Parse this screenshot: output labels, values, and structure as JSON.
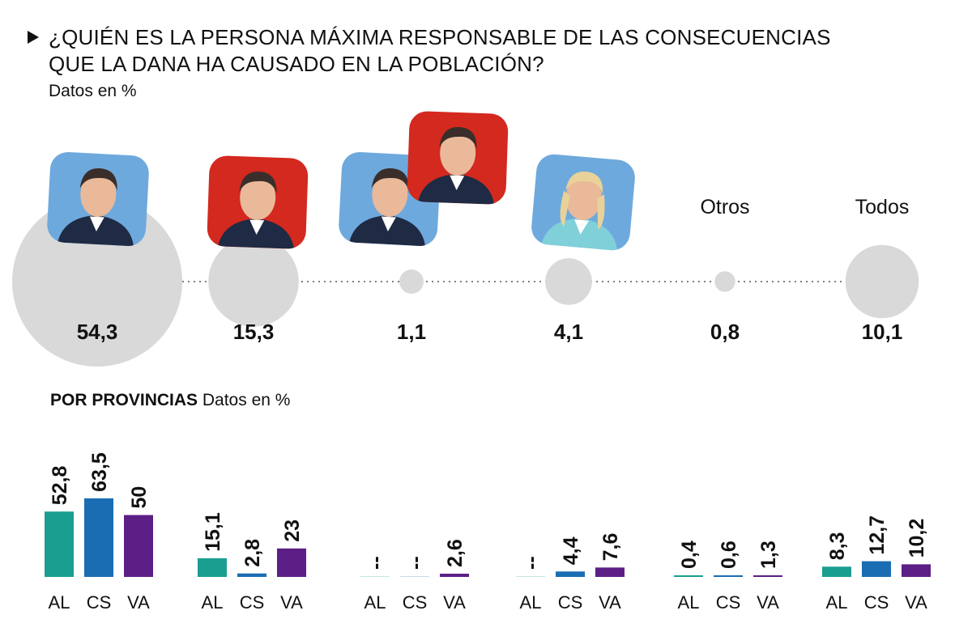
{
  "header": {
    "title_line1": "¿QUIÉN ES LA PERSONA MÁXIMA RESPONSABLE DE LAS CONSECUENCIAS",
    "title_line2": "QUE LA DANA HA CAUSADO EN LA POBLACIÓN?",
    "subtitle": "Datos en %"
  },
  "section": {
    "title": "POR PROVINCIAS",
    "subtitle": "Datos en %"
  },
  "colors": {
    "bubble": "#d9d9d9",
    "AL": "#1a9e8f",
    "CS": "#1a6db3",
    "VA": "#5c1f86",
    "tile_blue": "#6ea9dd",
    "tile_red": "#d3291f"
  },
  "chart_data": [
    {
      "type": "bubble",
      "categories": [
        "photo-blue",
        "photo-red",
        "photo-blue+red",
        "photo-blue-woman",
        "Otros",
        "Todos"
      ],
      "text_labels": [
        "",
        "",
        "",
        "",
        "Otros",
        "Todos"
      ],
      "values": [
        54.3,
        15.3,
        1.1,
        4.1,
        0.8,
        10.1
      ],
      "value_labels": [
        "54,3",
        "15,3",
        "1,1",
        "4,1",
        "0,8",
        "10,1"
      ]
    },
    {
      "type": "bar",
      "categories": [
        "AL",
        "CS",
        "VA"
      ],
      "groups": [
        {
          "values": [
            52.8,
            63.5,
            50
          ],
          "labels": [
            "52,8",
            "63,5",
            "50"
          ]
        },
        {
          "values": [
            15.1,
            2.8,
            23
          ],
          "labels": [
            "15,1",
            "2,8",
            "23"
          ]
        },
        {
          "values": [
            null,
            null,
            2.6
          ],
          "labels": [
            "--",
            "--",
            "2,6"
          ]
        },
        {
          "values": [
            null,
            4.4,
            7.6
          ],
          "labels": [
            "--",
            "4,4",
            "7,6"
          ]
        },
        {
          "values": [
            0.4,
            0.6,
            1.3
          ],
          "labels": [
            "0,4",
            "0,6",
            "1,3"
          ]
        },
        {
          "values": [
            8.3,
            12.7,
            10.2
          ],
          "labels": [
            "8,3",
            "12,7",
            "10,2"
          ]
        }
      ]
    }
  ]
}
